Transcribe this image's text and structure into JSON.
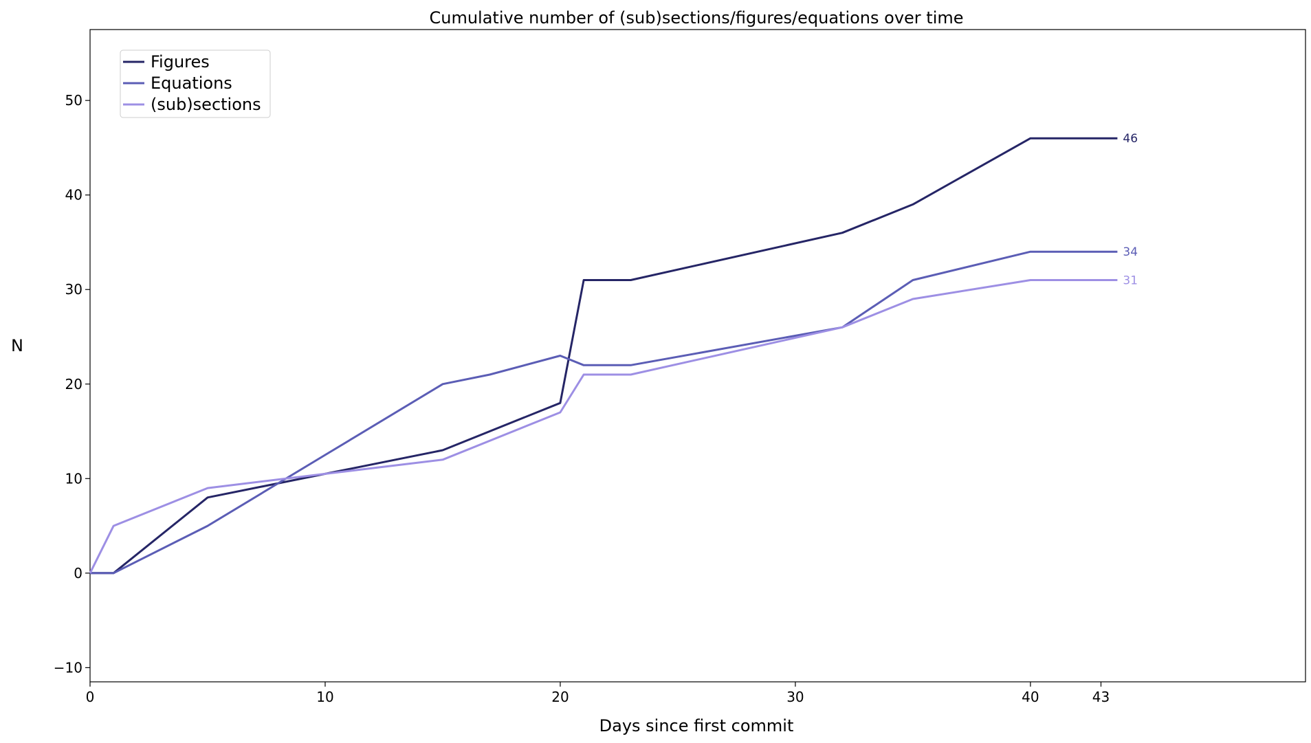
{
  "chart_data": {
    "type": "line",
    "title": "Cumulative number of (sub)sections/figures/equations over time",
    "xlabel": "Days since first commit",
    "ylabel": "N",
    "xlim": [
      0,
      51.7
    ],
    "ylim": [
      -11.5,
      57.5
    ],
    "x_ticks": [
      0,
      10,
      20,
      30,
      40,
      43
    ],
    "y_ticks": [
      -10,
      0,
      10,
      20,
      30,
      40,
      50
    ],
    "legend_position": "top-left",
    "grid": false,
    "series": [
      {
        "name": "Figures",
        "color": "#252566",
        "x": [
          0,
          1,
          5,
          10,
          15,
          20,
          21,
          23,
          32,
          35,
          40,
          43,
          43.7
        ],
        "values": [
          0,
          0,
          8,
          10.5,
          13,
          18,
          31,
          31,
          36,
          39,
          46,
          46,
          46
        ],
        "end_label": "46"
      },
      {
        "name": "Equations",
        "color": "#5b5db5",
        "x": [
          0,
          1,
          5,
          10,
          15,
          17,
          20,
          21,
          23,
          32,
          35,
          40,
          43,
          43.7
        ],
        "values": [
          0,
          0,
          5,
          12.5,
          20,
          21,
          23,
          22,
          22,
          26,
          31,
          34,
          34,
          34
        ],
        "end_label": "34"
      },
      {
        "name": "(sub)sections",
        "color": "#9d8fe4",
        "x": [
          0,
          1,
          5,
          10,
          15,
          20,
          21,
          23,
          32,
          35,
          40,
          43,
          43.7
        ],
        "values": [
          0,
          5,
          9,
          10.5,
          12,
          17,
          21,
          21,
          26,
          29,
          31,
          31,
          31
        ],
        "end_label": "31"
      }
    ]
  }
}
